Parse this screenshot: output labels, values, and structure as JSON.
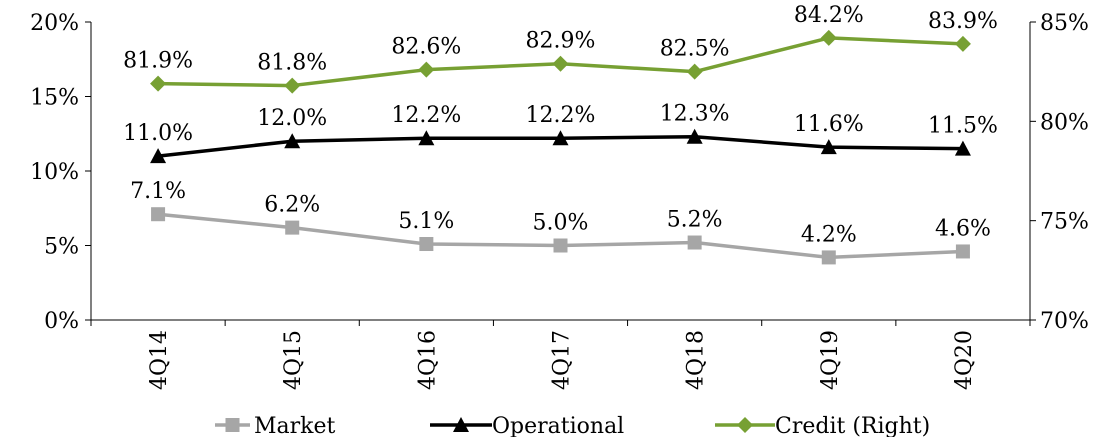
{
  "chart_data": {
    "type": "line",
    "categories": [
      "4Q14",
      "4Q15",
      "4Q16",
      "4Q17",
      "4Q18",
      "4Q19",
      "4Q20"
    ],
    "y_left": {
      "ylim": [
        0,
        20
      ],
      "ticks": [
        "0%",
        "5%",
        "10%",
        "15%",
        "20%"
      ]
    },
    "y_right": {
      "ylim": [
        70,
        85
      ],
      "ticks": [
        "70%",
        "75%",
        "80%",
        "85%"
      ]
    },
    "series": [
      {
        "name": "Market",
        "axis": "left",
        "color": "#a6a6a6",
        "marker": "square",
        "values": [
          7.1,
          6.2,
          5.1,
          5.0,
          5.2,
          4.2,
          4.6
        ],
        "labels": [
          "7.1%",
          "6.2%",
          "5.1%",
          "5.0%",
          "5.2%",
          "4.2%",
          "4.6%"
        ]
      },
      {
        "name": "Operational",
        "axis": "left",
        "color": "#000000",
        "marker": "triangle",
        "values": [
          11.0,
          12.0,
          12.2,
          12.2,
          12.3,
          11.6,
          11.5
        ],
        "labels": [
          "11.0%",
          "12.0%",
          "12.2%",
          "12.2%",
          "12.3%",
          "11.6%",
          "11.5%"
        ]
      },
      {
        "name": "Credit (Right)",
        "axis": "right",
        "color": "#77a033",
        "marker": "diamond",
        "values": [
          81.9,
          81.8,
          82.6,
          82.9,
          82.5,
          84.2,
          83.9
        ],
        "labels": [
          "81.9%",
          "81.8%",
          "82.6%",
          "82.9%",
          "82.5%",
          "84.2%",
          "83.9%"
        ]
      }
    ],
    "legend": {
      "position": "bottom"
    },
    "grid": false
  }
}
